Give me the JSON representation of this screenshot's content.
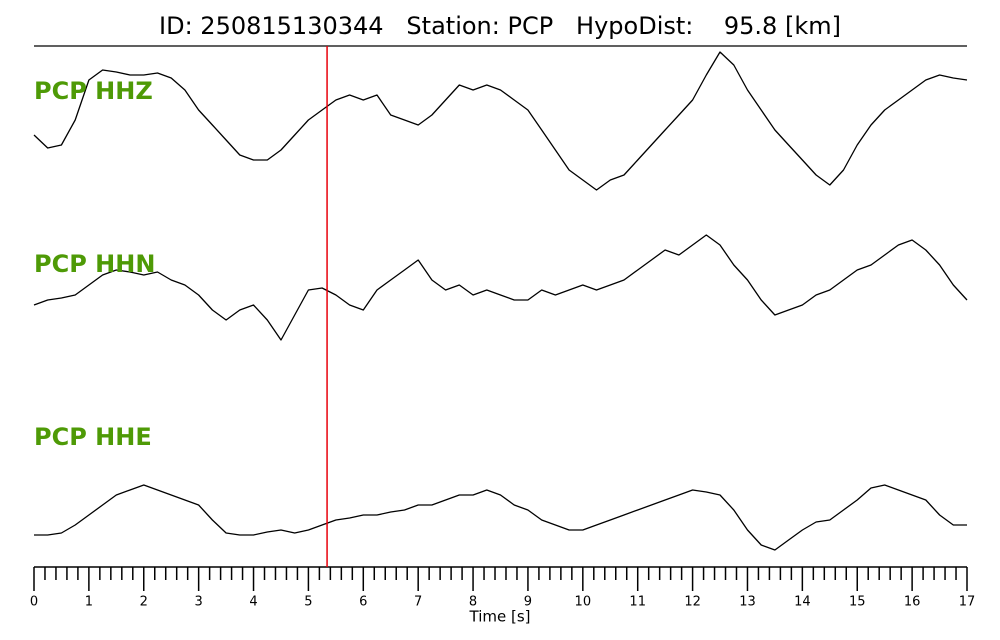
{
  "chart_data": {
    "type": "line",
    "title": "ID: 250815130344   Station: PCP   HypoDist:    95.8 [km]",
    "xlabel": "Time [s]",
    "label_color": "#4e9a06",
    "marker_x": 5.34,
    "marker_color": "#e8000b",
    "xlim": [
      0,
      17
    ],
    "xticks": [
      0,
      1,
      2,
      3,
      4,
      5,
      6,
      7,
      8,
      9,
      10,
      11,
      12,
      13,
      14,
      15,
      16,
      17
    ],
    "xminorticks": [
      0.2,
      0.4,
      0.6,
      0.8,
      1.2,
      1.4,
      1.6,
      1.8,
      2.2,
      2.4,
      2.6,
      2.8,
      3.2,
      3.4,
      3.6,
      3.8,
      4.2,
      4.4,
      4.6,
      4.8,
      5.2,
      5.4,
      5.6,
      5.8,
      6.2,
      6.4,
      6.6,
      6.8,
      7.2,
      7.4,
      7.6,
      7.8,
      8.2,
      8.4,
      8.6,
      8.8,
      9.2,
      9.4,
      9.6,
      9.8,
      10.2,
      10.4,
      10.6,
      10.8,
      11.2,
      11.4,
      11.6,
      11.8,
      12.2,
      12.4,
      12.6,
      12.8,
      13.2,
      13.4,
      13.6,
      13.8,
      14.2,
      14.4,
      14.6,
      14.8,
      15.2,
      15.4,
      15.6,
      15.8,
      16.2,
      16.4,
      16.6,
      16.8
    ],
    "x": [
      0,
      0.25,
      0.5,
      0.75,
      1,
      1.25,
      1.5,
      1.75,
      2,
      2.25,
      2.5,
      2.75,
      3,
      3.25,
      3.5,
      3.75,
      4,
      4.25,
      4.5,
      4.75,
      5,
      5.25,
      5.5,
      5.75,
      6,
      6.25,
      6.5,
      6.75,
      7,
      7.25,
      7.5,
      7.75,
      8,
      8.25,
      8.5,
      8.75,
      9,
      9.25,
      9.5,
      9.75,
      10,
      10.25,
      10.5,
      10.75,
      11,
      11.25,
      11.5,
      11.75,
      12,
      12.25,
      12.5,
      12.75,
      13,
      13.25,
      13.5,
      13.75,
      14,
      14.25,
      14.5,
      14.75,
      15,
      15.25,
      15.5,
      15.75,
      16,
      16.25,
      16.5,
      16.75,
      17
    ],
    "series": [
      {
        "name": "PCP HHZ",
        "color": "#000000",
        "ylim": [
          -80,
          80
        ],
        "values": [
          -5,
          -18,
          -15,
          10,
          50,
          60,
          58,
          55,
          55,
          57,
          52,
          40,
          20,
          5,
          -10,
          -25,
          -30,
          -30,
          -20,
          -5,
          10,
          20,
          30,
          35,
          30,
          35,
          15,
          10,
          5,
          15,
          30,
          45,
          40,
          45,
          40,
          30,
          20,
          0,
          -20,
          -40,
          -50,
          -60,
          -50,
          -45,
          -30,
          -15,
          0,
          15,
          30,
          55,
          78,
          65,
          40,
          20,
          0,
          -15,
          -30,
          -45,
          -55,
          -40,
          -15,
          5,
          20,
          30,
          40,
          50,
          55,
          52,
          50
        ]
      },
      {
        "name": "PCP HHN",
        "color": "#000000",
        "ylim": [
          -80,
          80
        ],
        "values": [
          -15,
          -10,
          -8,
          -5,
          5,
          15,
          20,
          18,
          15,
          18,
          10,
          5,
          -5,
          -20,
          -30,
          -20,
          -15,
          -30,
          -50,
          -25,
          0,
          2,
          -5,
          -15,
          -20,
          0,
          10,
          20,
          30,
          10,
          0,
          5,
          -5,
          0,
          -5,
          -10,
          -10,
          0,
          -5,
          0,
          5,
          0,
          5,
          10,
          20,
          30,
          40,
          35,
          45,
          55,
          45,
          25,
          10,
          -10,
          -25,
          -20,
          -15,
          -5,
          0,
          10,
          20,
          25,
          35,
          45,
          50,
          40,
          25,
          5,
          -10
        ]
      },
      {
        "name": "PCP HHE",
        "color": "#000000",
        "ylim": [
          -80,
          80
        ],
        "values": [
          -15,
          -15,
          -13,
          -5,
          5,
          15,
          25,
          30,
          35,
          30,
          25,
          20,
          15,
          0,
          -13,
          -15,
          -15,
          -12,
          -10,
          -13,
          -10,
          -5,
          0,
          2,
          5,
          5,
          8,
          10,
          15,
          15,
          20,
          25,
          25,
          30,
          25,
          15,
          10,
          0,
          -5,
          -10,
          -10,
          -5,
          0,
          5,
          10,
          15,
          20,
          25,
          30,
          28,
          25,
          10,
          -10,
          -25,
          -30,
          -20,
          -10,
          -2,
          0,
          10,
          20,
          32,
          35,
          30,
          25,
          20,
          5,
          -5,
          -5
        ]
      }
    ]
  }
}
